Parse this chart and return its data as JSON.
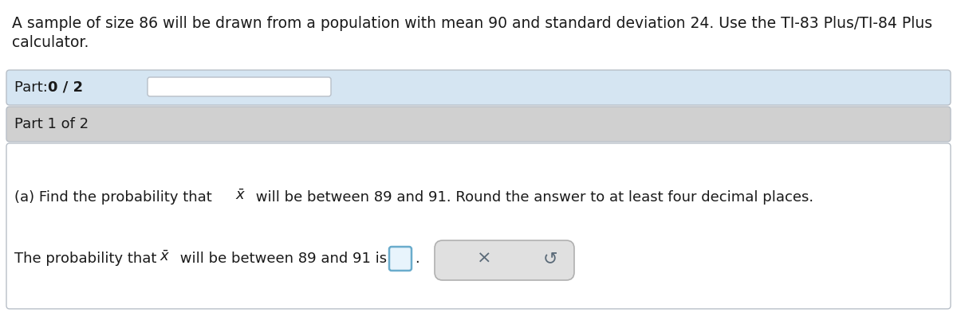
{
  "header_text_line1": "A sample of size 86 will be drawn from a population with mean 90 and standard deviation 24. Use the TI-83 Plus/TI-84 Plus",
  "header_text_line2": "calculator.",
  "part_label": "Part 1 of 2",
  "bg_color": "#ffffff",
  "part_progress_bg": "#d5e5f2",
  "part_label_bg": "#d0d0d0",
  "content_bg": "#ffffff",
  "border_color": "#b8bfc8",
  "input_box_bg": "#e8f4fc",
  "input_border_color": "#6aaccc",
  "button_bg": "#e0e0e0",
  "button_border": "#b0b0b0",
  "font_size_header": 13.5,
  "font_size_part": 13.0,
  "font_size_question": 13.0,
  "text_color": "#1a1a1a",
  "button_icon_color": "#5a6a78"
}
